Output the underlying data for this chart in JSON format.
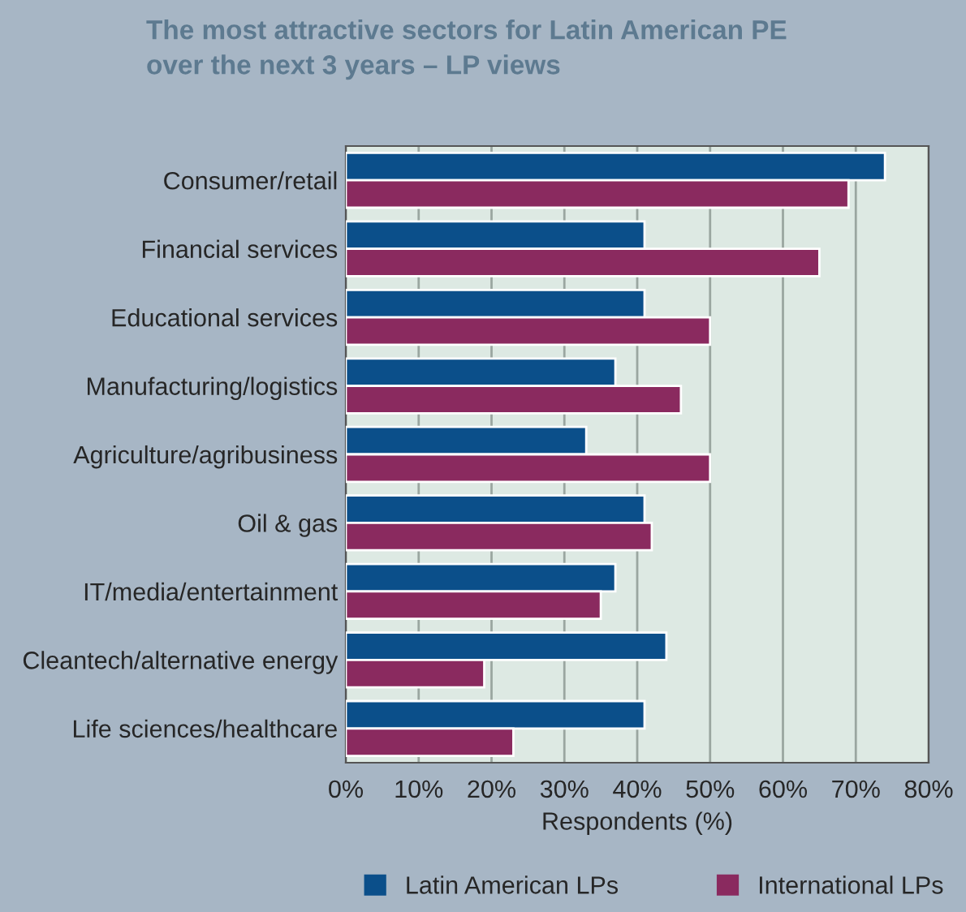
{
  "chart_data": {
    "type": "bar",
    "orientation": "horizontal",
    "title": "The most attractive sectors for Latin American PE\nover the next 3 years – LP views",
    "xlabel": "Respondents (%)",
    "categories": [
      "Consumer/retail",
      "Financial services",
      "Educational services",
      "Manufacturing/logistics",
      "Agriculture/agribusiness",
      "Oil & gas",
      "IT/media/entertainment",
      "Cleantech/alternative energy",
      "Life sciences/healthcare"
    ],
    "series": [
      {
        "name": "Latin American LPs",
        "color": "#0b4f8a",
        "values": [
          74,
          41,
          41,
          37,
          33,
          41,
          37,
          44,
          41
        ]
      },
      {
        "name": "International LPs",
        "color": "#8a2a5f",
        "values": [
          69,
          65,
          50,
          46,
          50,
          42,
          35,
          19,
          23
        ]
      }
    ],
    "xlim": [
      0,
      80
    ],
    "xticks": [
      {
        "value": 0,
        "label": "0%"
      },
      {
        "value": 10,
        "label": "10%"
      },
      {
        "value": 20,
        "label": "20%"
      },
      {
        "value": 30,
        "label": "30%"
      },
      {
        "value": 40,
        "label": "40%"
      },
      {
        "value": 50,
        "label": "50%"
      },
      {
        "value": 60,
        "label": "60%"
      },
      {
        "value": 70,
        "label": "70%"
      },
      {
        "value": 80,
        "label": "80%"
      }
    ],
    "grid": "x",
    "legend": "bottom"
  }
}
